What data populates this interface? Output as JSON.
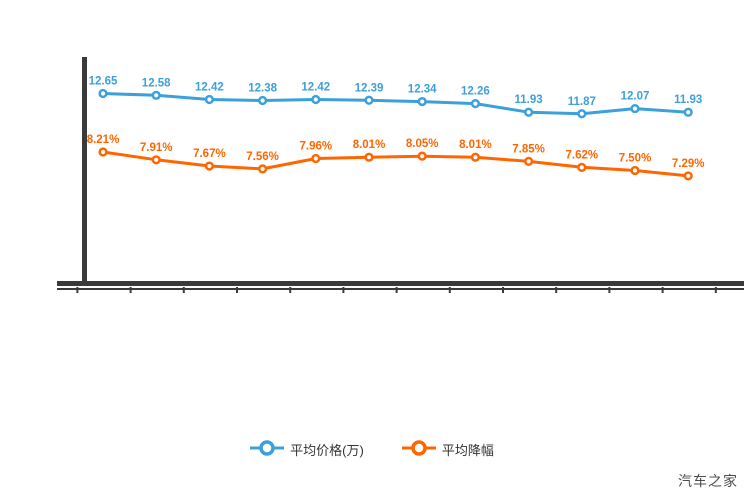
{
  "watermark": "汽车之家",
  "colors": {
    "price_series": "#3BA0DB",
    "discount_series": "#FF6600",
    "axis": "#3a3a3a",
    "legend_text": "#333333",
    "watermark_text": "#4d4d4d",
    "background": "#ffffff"
  },
  "legend": {
    "items": [
      {
        "label": "平均价格(万)",
        "color": "#3BA0DB"
      },
      {
        "label": "平均降幅",
        "color": "#FF6600"
      }
    ]
  },
  "chart_data": {
    "type": "line",
    "title": "",
    "xlabel": "",
    "ylabel": "",
    "x_tick_labels": [],
    "x_axis_labels_visible": false,
    "y_axis_labels_visible": false,
    "grid": false,
    "legend_position": "bottom",
    "point_count": 12,
    "series": [
      {
        "name": "平均价格(万)",
        "color": "#3BA0DB",
        "unit": "万",
        "axis": "left",
        "values": [
          12.65,
          12.58,
          12.42,
          12.38,
          12.42,
          12.39,
          12.34,
          12.26,
          11.93,
          11.87,
          12.07,
          11.93
        ],
        "labels": [
          "12.65",
          "12.58",
          "12.42",
          "12.38",
          "12.42",
          "12.39",
          "12.34",
          "12.26",
          "11.93",
          "11.87",
          "12.07",
          "11.93"
        ]
      },
      {
        "name": "平均降幅",
        "color": "#FF6600",
        "unit": "%",
        "axis": "right",
        "values": [
          8.21,
          7.91,
          7.67,
          7.56,
          7.96,
          8.01,
          8.05,
          8.01,
          7.85,
          7.62,
          7.5,
          7.29
        ],
        "labels": [
          "8.21%",
          "7.91%",
          "7.67%",
          "7.56%",
          "7.96%",
          "8.01%",
          "8.05%",
          "8.01%",
          "7.85%",
          "7.62%",
          "7.50%",
          "7.29%"
        ]
      }
    ]
  }
}
